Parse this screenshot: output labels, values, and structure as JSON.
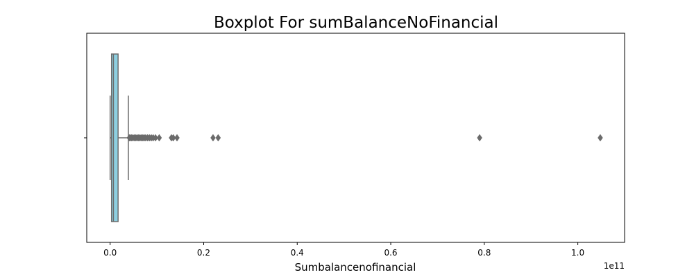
{
  "chart_data": {
    "type": "boxplot",
    "title": "Boxplot For sumBalanceNoFinancial",
    "xlabel": "Sumbalancenofinancial",
    "ylabel": "",
    "x_offset_label": "1e11",
    "xlim": [
      -0.05,
      1.1
    ],
    "xticks": [
      0.0,
      0.2,
      0.4,
      0.6,
      0.8,
      1.0
    ],
    "xtick_labels": [
      "0.0",
      "0.2",
      "0.4",
      "0.6",
      "0.8",
      "1.0"
    ],
    "grid": false,
    "box": {
      "whisker_low": 0.0,
      "q1": 0.003,
      "median": 0.007,
      "q3": 0.017,
      "whisker_high": 0.039
    },
    "outliers": [
      0.041,
      0.043,
      0.046,
      0.049,
      0.052,
      0.055,
      0.058,
      0.061,
      0.064,
      0.067,
      0.07,
      0.073,
      0.076,
      0.08,
      0.084,
      0.088,
      0.092,
      0.097,
      0.105,
      0.131,
      0.135,
      0.143,
      0.22,
      0.231,
      0.79,
      1.048
    ],
    "colors": {
      "box_fill": "#8dcfe0",
      "line": "#6b6b6b",
      "axis": "#000000"
    }
  }
}
